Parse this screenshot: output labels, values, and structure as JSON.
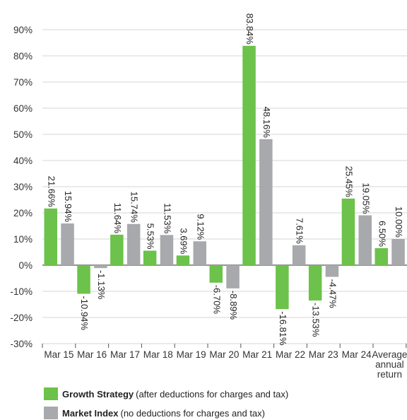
{
  "chart_data": {
    "type": "bar",
    "categories": [
      "Mar 15",
      "Mar 16",
      "Mar 17",
      "Mar 18",
      "Mar 19",
      "Mar 20",
      "Mar 21",
      "Mar 22",
      "Mar 23",
      "Mar 24",
      "Average annual return"
    ],
    "category_lines": [
      [
        "Mar 15"
      ],
      [
        "Mar 16"
      ],
      [
        "Mar 17"
      ],
      [
        "Mar 18"
      ],
      [
        "Mar 19"
      ],
      [
        "Mar 20"
      ],
      [
        "Mar 21"
      ],
      [
        "Mar 22"
      ],
      [
        "Mar 23"
      ],
      [
        "Mar 24"
      ],
      [
        "Average",
        "annual",
        "return"
      ]
    ],
    "series": [
      {
        "name": "Growth Strategy",
        "color": "#6cc24a",
        "values": [
          21.66,
          -10.94,
          11.64,
          5.53,
          3.69,
          -6.7,
          83.84,
          -16.81,
          -13.53,
          25.45,
          6.5
        ],
        "labels": [
          "21.66%",
          "-10.94%",
          "11.64%",
          "5.53%",
          "3.69%",
          "-6.70%",
          "83.84%",
          "-16.81%",
          "-13.53%",
          "25.45%",
          "6.50%"
        ]
      },
      {
        "name": "Market Index",
        "color": "#a7a9ac",
        "values": [
          15.94,
          -1.13,
          15.74,
          11.53,
          9.12,
          -8.89,
          48.16,
          7.61,
          -4.47,
          19.05,
          10.0
        ],
        "labels": [
          "15.94%",
          "-1.13%",
          "15.74%",
          "11.53%",
          "9.12%",
          "-8.89%",
          "48.16%",
          "7.61%",
          "-4.47%",
          "19.05%",
          "10.00%"
        ]
      }
    ],
    "yticks": [
      90,
      80,
      70,
      60,
      50,
      40,
      30,
      20,
      10,
      0,
      -10,
      -20,
      -30
    ],
    "ytick_labels": [
      "90%",
      "80%",
      "70%",
      "60%",
      "50%",
      "40%",
      "30%",
      "20%",
      "10%",
      "0%",
      "-10%",
      "-20%",
      "-30%"
    ],
    "ylim": [
      -30,
      90
    ],
    "grid": true
  },
  "legend": [
    {
      "name": "Growth Strategy",
      "note": "(after deductions for charges and tax)",
      "color": "#6cc24a"
    },
    {
      "name": "Market Index",
      "note": "(no deductions for charges and tax)",
      "color": "#a7a9ac"
    }
  ]
}
